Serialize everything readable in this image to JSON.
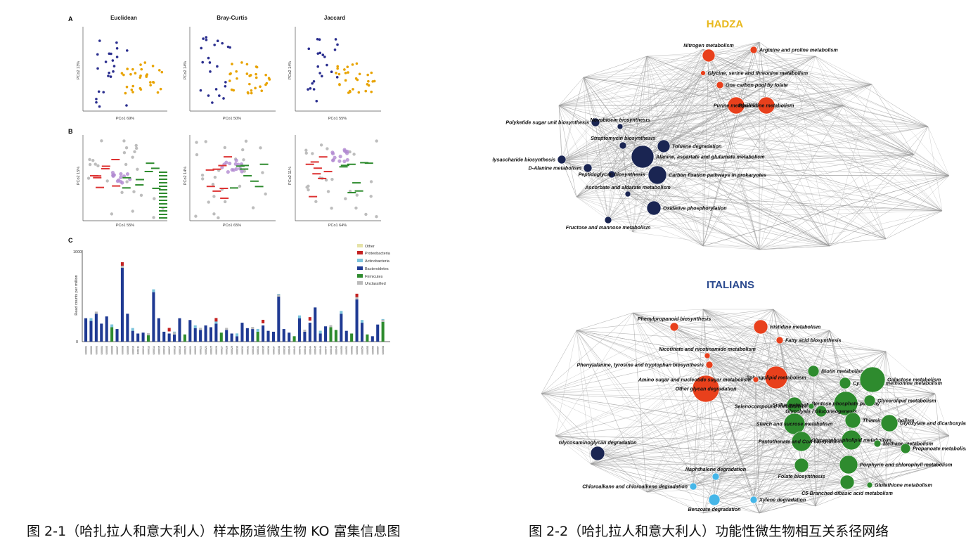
{
  "left_figure": {
    "panel_a": {
      "letter": "A",
      "plots": [
        {
          "title": "Euclidean",
          "xlabel": "PCo1 69%",
          "ylabel": "PCo2 13%"
        },
        {
          "title": "Bray-Curtis",
          "xlabel": "PCo1 50%",
          "ylabel": "PCo2 14%"
        },
        {
          "title": "Jaccard",
          "xlabel": "PCo1 55%",
          "ylabel": "PCo2 14%"
        }
      ]
    },
    "panel_b": {
      "letter": "B",
      "plots": [
        {
          "xlabel": "PCo1 55%",
          "ylabel": "PCo2 15%"
        },
        {
          "xlabel": "PCo1 65%",
          "ylabel": "PCo2 14%"
        },
        {
          "xlabel": "PCo1 64%",
          "ylabel": "PCo2 11%"
        }
      ]
    },
    "panel_c": {
      "letter": "C",
      "ylabel": "Read counts per million",
      "y_top_label": "1000",
      "y_zero_label": "0",
      "legend": [
        "Other",
        "Proteobacteria",
        "Actinobacteria",
        "Bacteroidetes",
        "Firmicutes",
        "Unclassified"
      ]
    }
  },
  "right_figure": {
    "hadza": {
      "title": "HADZA",
      "nodes": [
        {
          "label": "Nitrogen metabolism",
          "color": "#e8401c"
        },
        {
          "label": "Arginine and proline metabolism",
          "color": "#e8401c"
        },
        {
          "label": "Glycine, serine and threonine metabolism",
          "color": "#e8401c"
        },
        {
          "label": "One carbon pool by folate",
          "color": "#e8401c"
        },
        {
          "label": "Purine metabolism",
          "color": "#e8401c"
        },
        {
          "label": "Pyrimidine metabolism",
          "color": "#e8401c"
        },
        {
          "label": "Polyketide sugar unit biosynthesis",
          "color": "#1a2552"
        },
        {
          "label": "Novobiocin biosynthesis",
          "color": "#1a2552"
        },
        {
          "label": "Streptomycin biosynthesis",
          "color": "#1a2552"
        },
        {
          "label": "Toluene degradation",
          "color": "#1a2552"
        },
        {
          "label": "Lipopolysaccharide biosynthesis",
          "color": "#1a2552"
        },
        {
          "label": "Alanine, aspartate and glutamate metabolism",
          "color": "#1a2552"
        },
        {
          "label": "D-Alanine metabolism",
          "color": "#1a2552"
        },
        {
          "label": "Peptidoglycan biosynthesis",
          "color": "#1a2552"
        },
        {
          "label": "Carbon fixation pathways in prokaryotes",
          "color": "#1a2552"
        },
        {
          "label": "Ascorbate and aldarate metabolism",
          "color": "#1a2552"
        },
        {
          "label": "Oxidative phosphorylation",
          "color": "#1a2552"
        },
        {
          "label": "Fructose and mannose metabolism",
          "color": "#1a2552"
        }
      ]
    },
    "italians": {
      "title": "ITALIANS",
      "nodes": [
        {
          "label": "Phenylpropanoid biosynthesis",
          "color": "#e8401c"
        },
        {
          "label": "Histidine metabolism",
          "color": "#e8401c"
        },
        {
          "label": "Fatty acid biosynthesis",
          "color": "#e8401c"
        },
        {
          "label": "Nicotinate and nicotinamide metabolism",
          "color": "#e8401c"
        },
        {
          "label": "Phenylalanine, tyrosine and tryptophan biosynthesis",
          "color": "#e8401c"
        },
        {
          "label": "Other glycan degradation",
          "color": "#e8401c"
        },
        {
          "label": "Sphingolipid metabolism",
          "color": "#e8401c"
        },
        {
          "label": "Amino sugar and nucleotide sugar metabolism",
          "color": "#e8401c"
        },
        {
          "label": "Biotin metabolism",
          "color": "#2e8b2e"
        },
        {
          "label": "Cysteine and methionine metabolism",
          "color": "#2e8b2e"
        },
        {
          "label": "Galactose metabolism",
          "color": "#2e8b2e"
        },
        {
          "label": "Sulfur metabolism",
          "color": "#2e8b2e"
        },
        {
          "label": "Pentose phosphate pathway",
          "color": "#2e8b2e"
        },
        {
          "label": "Glycerolipid metabolism",
          "color": "#2e8b2e"
        },
        {
          "label": "Glycolysis / Gluconeogenesis",
          "color": "#2e8b2e"
        },
        {
          "label": "Selenocompound metabolism",
          "color": "#2e8b2e"
        },
        {
          "label": "Starch and sucrose metabolism",
          "color": "#2e8b2e"
        },
        {
          "label": "Thiamine metabolism",
          "color": "#2e8b2e"
        },
        {
          "label": "Glyoxylate and dicarboxylate metabolism",
          "color": "#2e8b2e"
        },
        {
          "label": "Glycosaminoglycan degradation",
          "color": "#1a2552"
        },
        {
          "label": "Pantothenate and CoA biosynthesis",
          "color": "#2e8b2e"
        },
        {
          "label": "Glycerophospholipid metabolism",
          "color": "#2e8b2e"
        },
        {
          "label": "Methane metabolism",
          "color": "#2e8b2e"
        },
        {
          "label": "Propanoate metabolism",
          "color": "#2e8b2e"
        },
        {
          "label": "Folate biosynthesis",
          "color": "#2e8b2e"
        },
        {
          "label": "Porphyrin and chlorophyll metabolism",
          "color": "#2e8b2e"
        },
        {
          "label": "Naphthalene degradation",
          "color": "#45b6e8"
        },
        {
          "label": "Chloroalkane and chloroalkene degradation",
          "color": "#45b6e8"
        },
        {
          "label": "Xylene degradation",
          "color": "#45b6e8"
        },
        {
          "label": "C5-Branched dibasic acid metabolism",
          "color": "#2e8b2e"
        },
        {
          "label": "Glutathione metabolism",
          "color": "#2e8b2e"
        },
        {
          "label": "Benzoate degradation",
          "color": "#45b6e8"
        }
      ]
    }
  },
  "captions": {
    "left": "图 2-1（哈扎拉人和意大利人）样本肠道微生物 KO 富集信息图",
    "right": "图 2-2（哈扎拉人和意大利人）功能性微生物相互关系径网络"
  },
  "chart_data": [
    {
      "type": "scatter",
      "panel": "A",
      "title": "Euclidean",
      "xlabel": "PCo1 69%",
      "ylabel": "PCo2 13%",
      "series": [
        {
          "color": "#2b2f8f"
        },
        {
          "color": "#e8a300"
        }
      ]
    },
    {
      "type": "scatter",
      "panel": "A",
      "title": "Bray-Curtis",
      "xlabel": "PCo1 50%",
      "ylabel": "PCo2 14%",
      "series": [
        {
          "color": "#2b2f8f"
        },
        {
          "color": "#e8a300"
        }
      ]
    },
    {
      "type": "scatter",
      "panel": "A",
      "title": "Jaccard",
      "xlabel": "PCo1 55%",
      "ylabel": "PCo2 14%",
      "series": [
        {
          "color": "#2b2f8f"
        },
        {
          "color": "#e8a300"
        }
      ]
    },
    {
      "type": "bar",
      "panel": "C",
      "ylabel": "Read counts per million",
      "ylim": [
        0,
        1000
      ],
      "legend_placement": "top-right",
      "values": [
        260,
        230,
        310,
        200,
        280,
        160,
        140,
        820,
        310,
        120,
        90,
        100,
        70,
        550,
        260,
        110,
        90,
        80,
        260,
        80,
        240,
        150,
        130,
        180,
        160,
        200,
        100,
        130,
        90,
        60,
        210,
        150,
        140,
        110,
        180,
        120,
        110,
        500,
        140,
        100,
        60,
        260,
        110,
        210,
        380,
        90,
        170,
        160,
        130,
        310,
        120,
        90,
        470,
        210,
        80,
        60,
        190,
        220
      ],
      "categories": [
        "K00001",
        "K00002",
        "K00003",
        "K00004",
        "K00005",
        "K00006",
        "K00007",
        "K00008",
        "K00009",
        "K00010",
        "K00011",
        "K00012",
        "K00013",
        "K00014",
        "K00015",
        "K00016",
        "K00017",
        "K00018",
        "K00019",
        "K00020",
        "K00021",
        "K00022",
        "K00023",
        "K00024",
        "K00025",
        "K00026",
        "K00027",
        "K00028",
        "K00029",
        "K00030",
        "K00031",
        "K00032",
        "K00033",
        "K00034",
        "K00035",
        "K00036",
        "K00037",
        "K00038",
        "K00039",
        "K00040",
        "K00041",
        "K00042",
        "K00043",
        "K00044",
        "K00045",
        "K00046",
        "K00047",
        "K00048",
        "K00049",
        "K00050",
        "K00051",
        "K00052",
        "K00053",
        "K00054",
        "K00055",
        "K00056",
        "K00057",
        "K00058"
      ]
    }
  ]
}
